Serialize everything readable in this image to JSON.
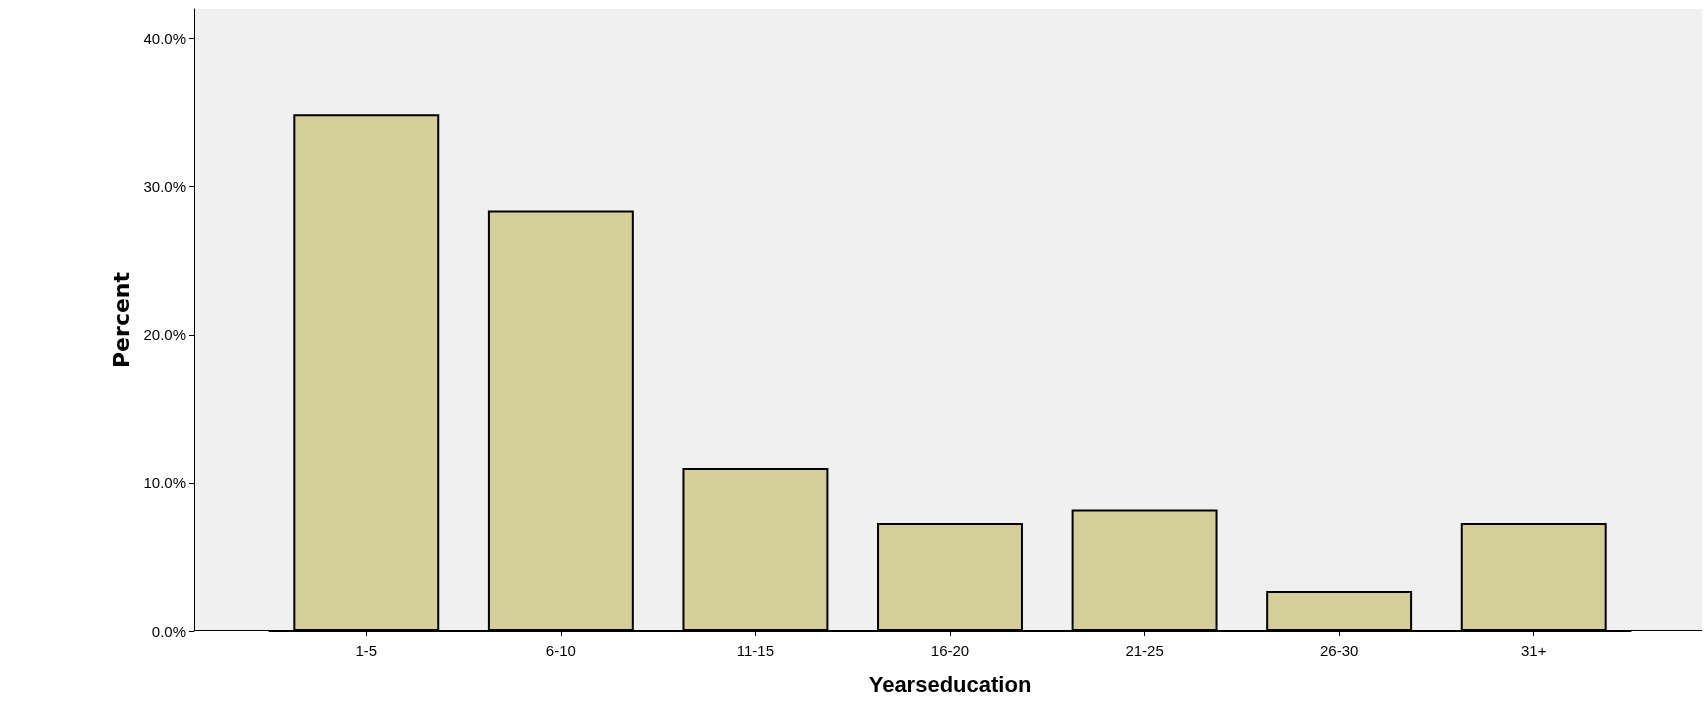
{
  "chart_data": {
    "type": "bar",
    "xlabel": "Yearseducation",
    "ylabel": "Percent",
    "categories": [
      "1-5",
      "6-10",
      "11-15",
      "16-20",
      "21-25",
      "26-30",
      "31+"
    ],
    "values": [
      34.9,
      28.4,
      11.0,
      7.3,
      8.2,
      2.7,
      7.3
    ],
    "color": "#d4cf98",
    "ylim": [
      0,
      42
    ],
    "yticks": [
      {
        "value": 0,
        "label": "0.0%"
      },
      {
        "value": 10,
        "label": "10.0%"
      },
      {
        "value": 20,
        "label": "20.0%"
      },
      {
        "value": 30,
        "label": "30.0%"
      },
      {
        "value": 40,
        "label": "40.0%"
      }
    ],
    "grid": false
  }
}
